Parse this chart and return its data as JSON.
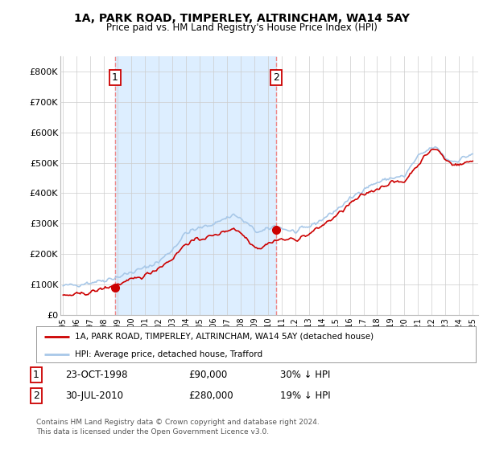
{
  "title": "1A, PARK ROAD, TIMPERLEY, ALTRINCHAM, WA14 5AY",
  "subtitle": "Price paid vs. HM Land Registry's House Price Index (HPI)",
  "ylim": [
    0,
    850000
  ],
  "yticks": [
    0,
    100000,
    200000,
    300000,
    400000,
    500000,
    600000,
    700000,
    800000
  ],
  "ytick_labels": [
    "£0",
    "£100K",
    "£200K",
    "£300K",
    "£400K",
    "£500K",
    "£600K",
    "£700K",
    "£800K"
  ],
  "xlim": [
    1994.8,
    2025.4
  ],
  "xticks": [
    1995,
    1996,
    1997,
    1998,
    1999,
    2000,
    2001,
    2002,
    2003,
    2004,
    2005,
    2006,
    2007,
    2008,
    2009,
    2010,
    2011,
    2012,
    2013,
    2014,
    2015,
    2016,
    2017,
    2018,
    2019,
    2020,
    2021,
    2022,
    2023,
    2024,
    2025
  ],
  "hpi_color": "#a8c8e8",
  "price_color": "#cc0000",
  "marker_color": "#cc0000",
  "vline_color": "#ee8888",
  "shade_color": "#ddeeff",
  "purchase1_x": 1998.81,
  "purchase1_y": 90000,
  "purchase1_label": "1",
  "purchase2_x": 2010.58,
  "purchase2_y": 280000,
  "purchase2_label": "2",
  "legend_line1": "1A, PARK ROAD, TIMPERLEY, ALTRINCHAM, WA14 5AY (detached house)",
  "legend_line2": "HPI: Average price, detached house, Trafford",
  "table_row1_num": "1",
  "table_row1_date": "23-OCT-1998",
  "table_row1_price": "£90,000",
  "table_row1_hpi": "30% ↓ HPI",
  "table_row2_num": "2",
  "table_row2_date": "30-JUL-2010",
  "table_row2_price": "£280,000",
  "table_row2_hpi": "19% ↓ HPI",
  "footnote1": "Contains HM Land Registry data © Crown copyright and database right 2024.",
  "footnote2": "This data is licensed under the Open Government Licence v3.0.",
  "background_color": "#ffffff",
  "grid_color": "#cccccc"
}
